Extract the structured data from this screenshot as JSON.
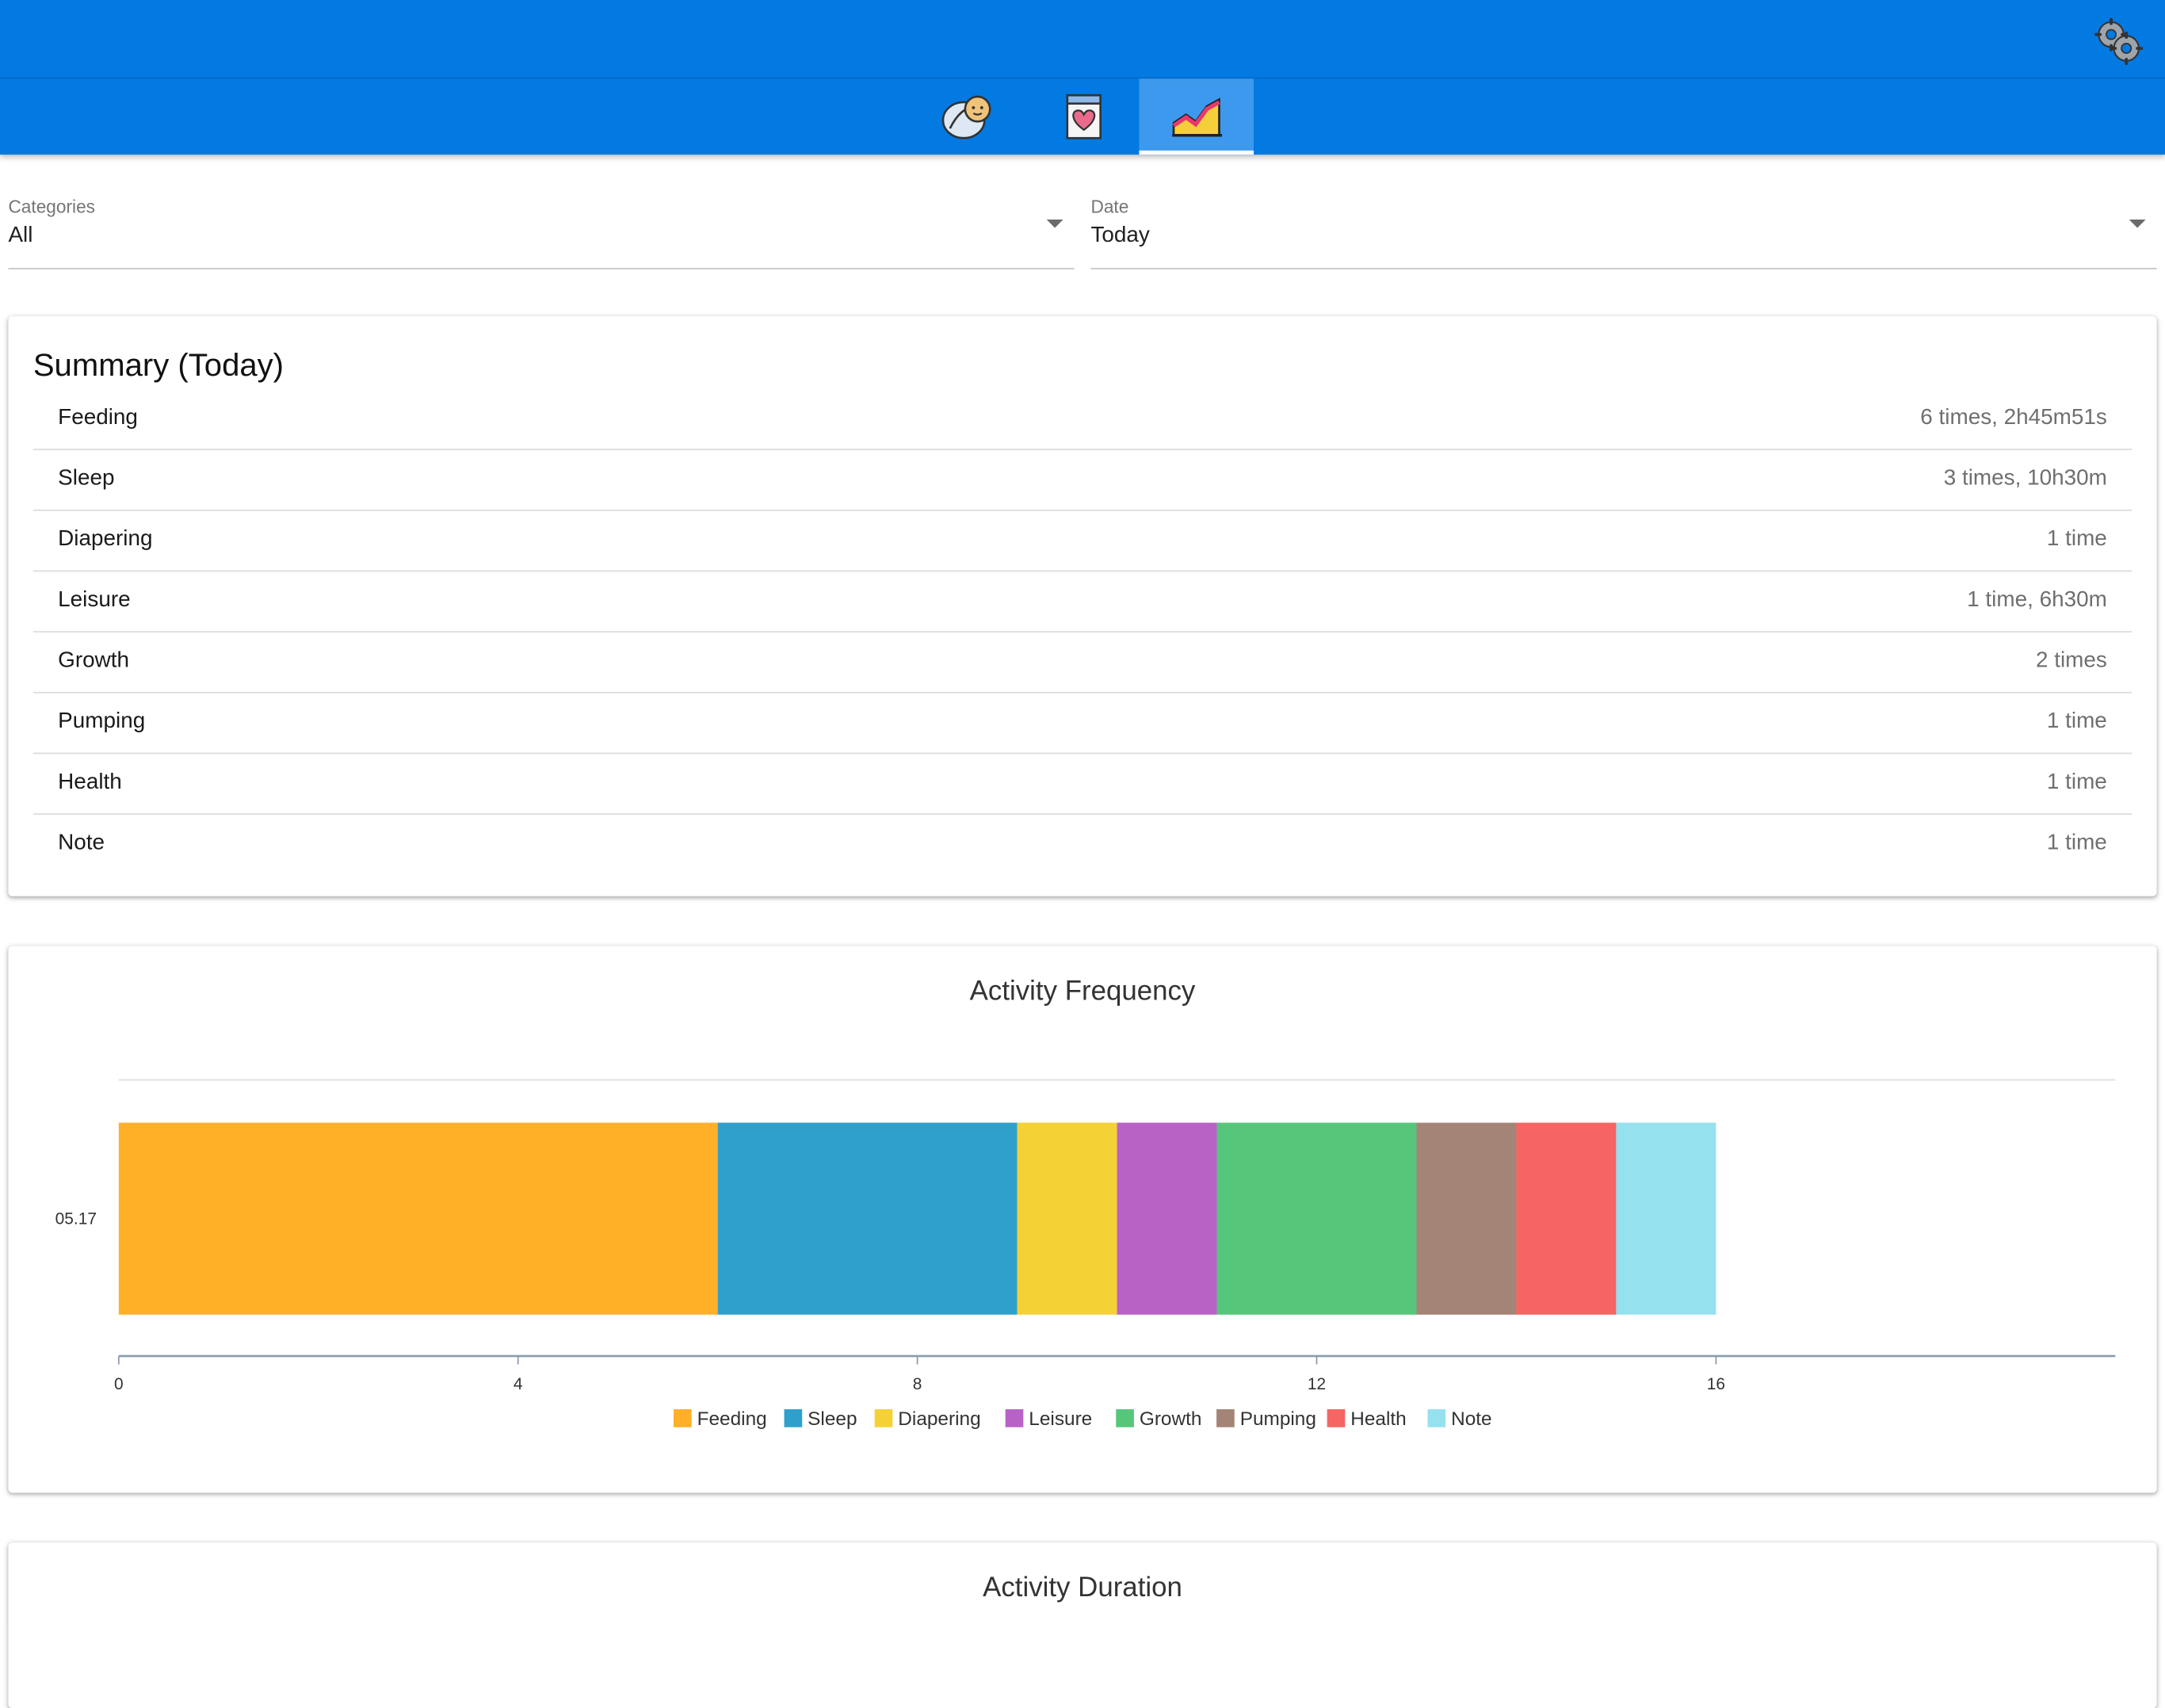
{
  "header": {
    "settings_icon": "gear-icon",
    "tabs": [
      {
        "icon": "baby-icon",
        "active": false
      },
      {
        "icon": "heart-document-icon",
        "active": false
      },
      {
        "icon": "chart-icon",
        "active": true
      }
    ]
  },
  "filters": {
    "categories": {
      "label": "Categories",
      "value": "All"
    },
    "date": {
      "label": "Date",
      "value": "Today"
    }
  },
  "summary": {
    "title": "Summary (Today)",
    "rows": [
      {
        "name": "Feeding",
        "stat": "6 times, 2h45m51s"
      },
      {
        "name": "Sleep",
        "stat": "3 times, 10h30m"
      },
      {
        "name": "Diapering",
        "stat": "1 time"
      },
      {
        "name": "Leisure",
        "stat": "1 time, 6h30m"
      },
      {
        "name": "Growth",
        "stat": "2 times"
      },
      {
        "name": "Pumping",
        "stat": "1 time"
      },
      {
        "name": "Health",
        "stat": "1 time"
      },
      {
        "name": "Note",
        "stat": "1 time"
      }
    ]
  },
  "colors": {
    "appbar": "#0379e2",
    "Feeding": "#ffb027",
    "Sleep": "#2fa0cc",
    "Diapering": "#f4d134",
    "Leisure": "#b862c6",
    "Growth": "#56c67b",
    "Pumping": "#a48476",
    "Health": "#f66463",
    "Note": "#95e1ee"
  },
  "chart_data": {
    "type": "bar",
    "orientation": "horizontal",
    "stacked": true,
    "title": "Activity Frequency",
    "categories": [
      "05.17"
    ],
    "series": [
      {
        "name": "Feeding",
        "values": [
          6
        ]
      },
      {
        "name": "Sleep",
        "values": [
          3
        ]
      },
      {
        "name": "Diapering",
        "values": [
          1
        ]
      },
      {
        "name": "Leisure",
        "values": [
          1
        ]
      },
      {
        "name": "Growth",
        "values": [
          2
        ]
      },
      {
        "name": "Pumping",
        "values": [
          1
        ]
      },
      {
        "name": "Health",
        "values": [
          1
        ]
      },
      {
        "name": "Note",
        "values": [
          1
        ]
      }
    ],
    "xticks": [
      "0",
      "4",
      "8",
      "12",
      "16"
    ],
    "xlim": [
      0,
      20
    ],
    "legend": "bottom",
    "grid": false
  },
  "duration_card": {
    "title": "Activity Duration"
  }
}
